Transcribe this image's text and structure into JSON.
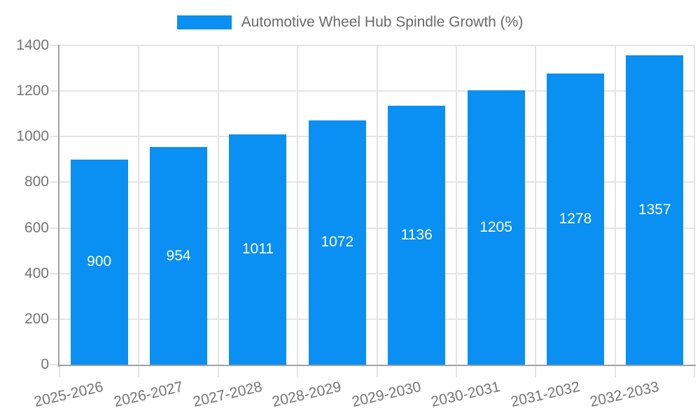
{
  "legend": {
    "label": "Automotive Wheel Hub Spindle Growth (%)"
  },
  "chart_data": {
    "type": "bar",
    "title": "Automotive Wheel Hub Spindle Growth (%)",
    "categories": [
      "2025-2026",
      "2026-2027",
      "2027-2028",
      "2028-2029",
      "2029-2030",
      "2030-2031",
      "2031-2032",
      "2032-2033"
    ],
    "values": [
      900,
      954,
      1011,
      1072,
      1136,
      1205,
      1278,
      1357
    ],
    "value_labels": [
      "900",
      "954",
      "1011",
      "1072",
      "1136",
      "1205",
      "1278",
      "1357"
    ],
    "xlabel": "",
    "ylabel": "",
    "ylim": [
      0,
      1400
    ],
    "yticks": [
      0,
      200,
      400,
      600,
      800,
      1000,
      1200,
      1400
    ],
    "ytick_labels": [
      "0",
      "200",
      "400",
      "600",
      "800",
      "1000",
      "1200",
      "1400"
    ],
    "grid": true,
    "legend_position": "top",
    "value_labels_position": "inside-center",
    "x_label_rotation_deg": -13,
    "colors": {
      "bar": "#0a8ff3",
      "grid": "#e4e4e4",
      "axis": "#a1a1a1",
      "tick_label": "#757575",
      "legend_text": "#6a6a6a",
      "value_label": "#ffffff",
      "background": "#ffffff"
    }
  }
}
